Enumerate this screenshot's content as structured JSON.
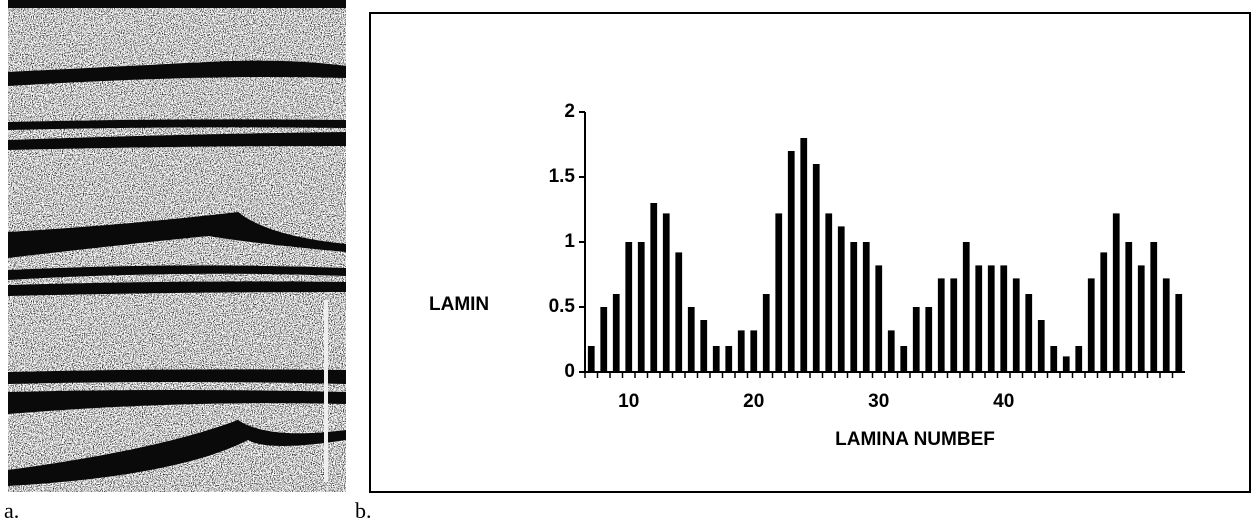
{
  "panels": {
    "a": {
      "label": "a."
    },
    "b": {
      "label": "b."
    }
  },
  "chart_data": {
    "type": "bar",
    "ylabel": "LAMIN",
    "xlabel": "LAMINA NUMBEF",
    "x": [
      7,
      8,
      9,
      10,
      11,
      12,
      13,
      14,
      15,
      16,
      17,
      18,
      19,
      20,
      21,
      22,
      23,
      24,
      25,
      26,
      27,
      28,
      29,
      30,
      31,
      32,
      33,
      34,
      35,
      36,
      37,
      38,
      39,
      40,
      41,
      42,
      43,
      44,
      45,
      46,
      47,
      48,
      49,
      50,
      51,
      52,
      53,
      54
    ],
    "values": [
      0.2,
      0.5,
      0.6,
      1.0,
      1.0,
      1.3,
      1.22,
      0.92,
      0.5,
      0.4,
      0.2,
      0.2,
      0.32,
      0.32,
      0.6,
      1.22,
      1.7,
      1.8,
      1.6,
      1.22,
      1.12,
      1.0,
      1.0,
      0.82,
      0.32,
      0.2,
      0.5,
      0.5,
      0.72,
      0.72,
      1.0,
      0.82,
      0.82,
      0.82,
      0.72,
      0.6,
      0.4,
      0.2,
      0.12,
      0.2,
      0.72,
      0.92,
      1.22,
      1.0,
      0.82,
      1.0,
      0.72,
      0.6
    ],
    "color": "#000000",
    "xlim": [
      6.5,
      54.5
    ],
    "xticks": [
      10,
      20,
      30,
      40
    ],
    "ylim": [
      0,
      2
    ],
    "yticks": [
      0,
      0.5,
      1,
      1.5,
      2
    ],
    "grid": false
  }
}
